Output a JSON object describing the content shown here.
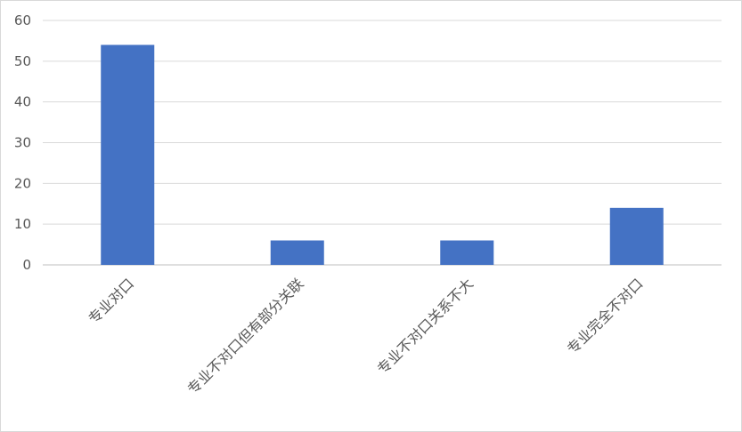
{
  "chart_data": {
    "type": "bar",
    "categories": [
      "专业对口",
      "专业不对口但有部分关联",
      "专业不对口关系不大",
      "专业完全不对口"
    ],
    "values": [
      54,
      6,
      6,
      14
    ],
    "ylim": [
      0,
      60
    ],
    "yticks": [
      0,
      10,
      20,
      30,
      40,
      50,
      60
    ],
    "grid": true,
    "legend": "none",
    "bar_color": "#4472c4",
    "grid_color": "#d9d9d9",
    "label_color": "#595959"
  }
}
